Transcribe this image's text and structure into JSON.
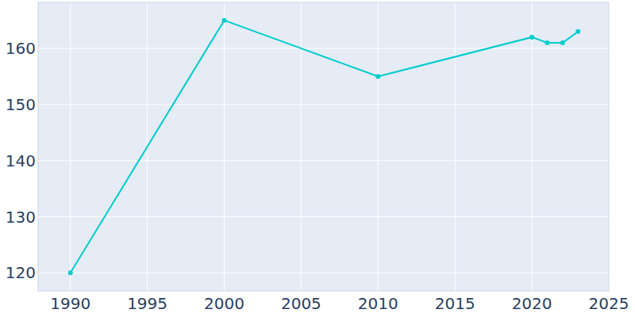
{
  "chart_data": {
    "type": "line",
    "x": [
      1990,
      2000,
      2010,
      2020,
      2021,
      2022,
      2023
    ],
    "values": [
      120,
      165,
      155,
      162,
      161,
      161,
      163
    ],
    "color": "#00cccc",
    "marker": "circle",
    "xlim": [
      1987.9,
      2025
    ],
    "ylim": [
      116.8,
      168.2
    ],
    "xticks": [
      1990,
      1995,
      2000,
      2005,
      2010,
      2015,
      2020,
      2025
    ],
    "yticks": [
      120,
      130,
      140,
      150,
      160
    ],
    "grid": true
  }
}
